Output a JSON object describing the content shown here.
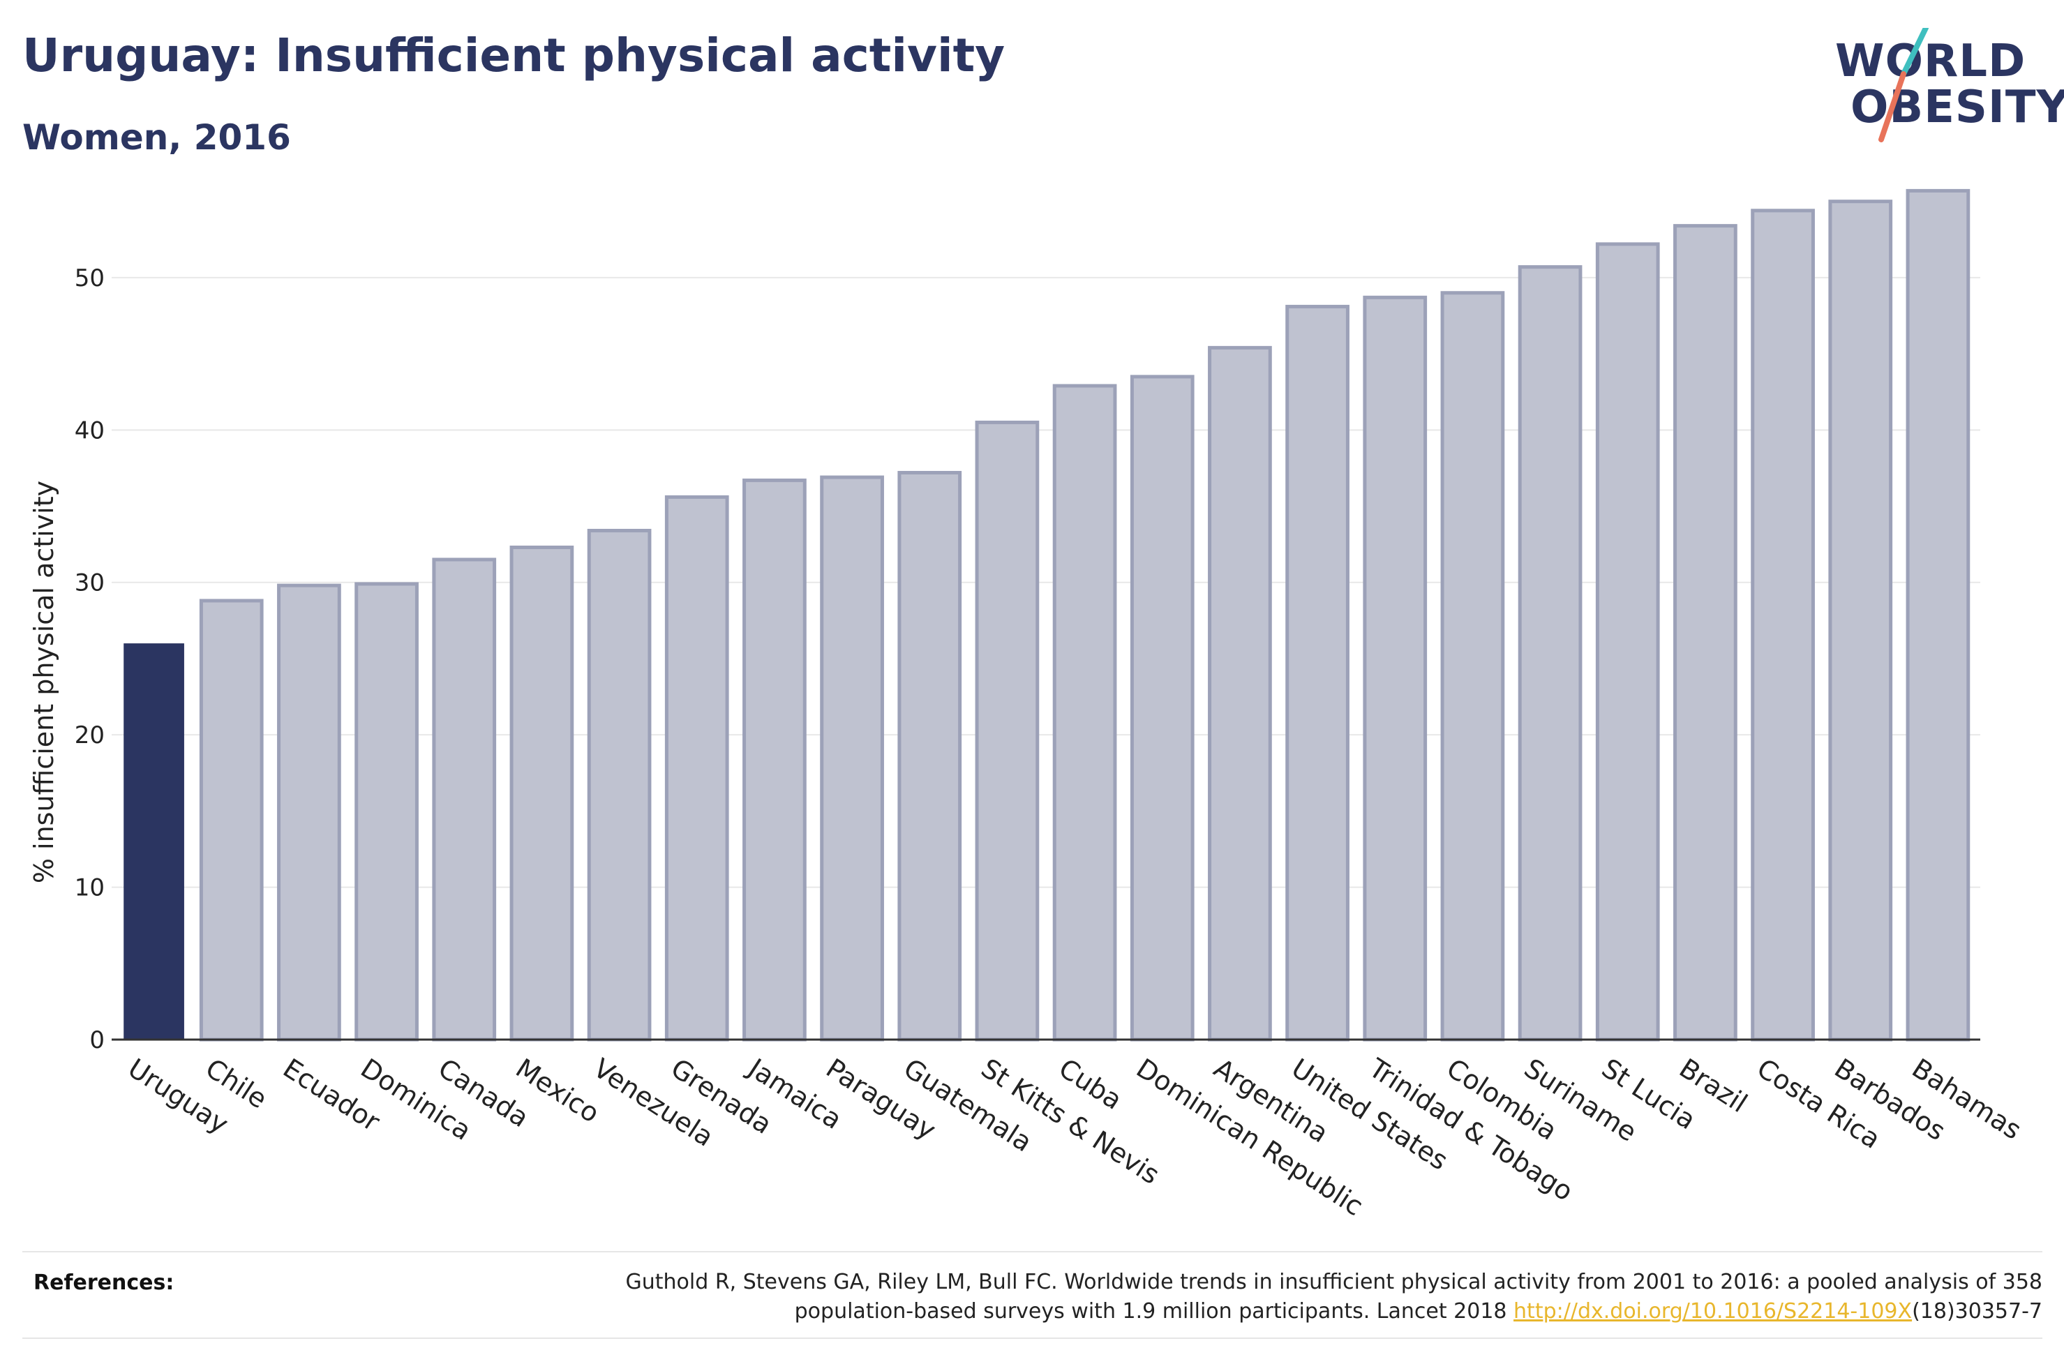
{
  "header": {
    "title": "Uruguay: Insufficient physical activity",
    "subtitle": "Women, 2016"
  },
  "logo": {
    "line1": "WORLD",
    "line2": "OBESITY",
    "slash_colors": [
      "#3fbfbf",
      "#e8735a"
    ]
  },
  "colors": {
    "highlight": "#2b3561",
    "bar_fill": "#bfc2d0",
    "bar_stroke": "#9ca1b8",
    "grid": "#e8e8e8",
    "axis": "#333333"
  },
  "chart_data": {
    "type": "bar",
    "ylabel": "% insufficient physical activity",
    "xlabel": "",
    "ylim": [
      0,
      57
    ],
    "yticks": [
      0,
      10,
      20,
      30,
      40,
      50
    ],
    "grid": true,
    "highlight": "Uruguay",
    "categories": [
      "Uruguay",
      "Chile",
      "Ecuador",
      "Dominica",
      "Canada",
      "Mexico",
      "Venezuela",
      "Grenada",
      "Jamaica",
      "Paraguay",
      "Guatemala",
      "St Kitts & Nevis",
      "Cuba",
      "Dominican Republic",
      "Argentina",
      "United States",
      "Trinidad & Tobago",
      "Colombia",
      "Suriname",
      "St Lucia",
      "Brazil",
      "Costa Rica",
      "Barbados",
      "Bahamas"
    ],
    "values": [
      26.0,
      28.8,
      29.8,
      29.9,
      31.5,
      32.3,
      33.4,
      35.6,
      36.7,
      36.9,
      37.2,
      40.5,
      42.9,
      43.5,
      45.4,
      48.1,
      48.7,
      49.0,
      50.7,
      52.2,
      53.4,
      54.4,
      55.0,
      55.7
    ]
  },
  "references": {
    "label": "References:",
    "line1": "Guthold R, Stevens GA, Riley LM, Bull FC. Worldwide trends in insufficient physical activity from 2001 to 2016: a pooled analysis of 358",
    "line2_prefix": "population-based surveys with 1.9 million participants. Lancet 2018 ",
    "link": "http://dx.doi.org/10.1016/S2214-109X",
    "line2_suffix": "(18)30357-7"
  }
}
